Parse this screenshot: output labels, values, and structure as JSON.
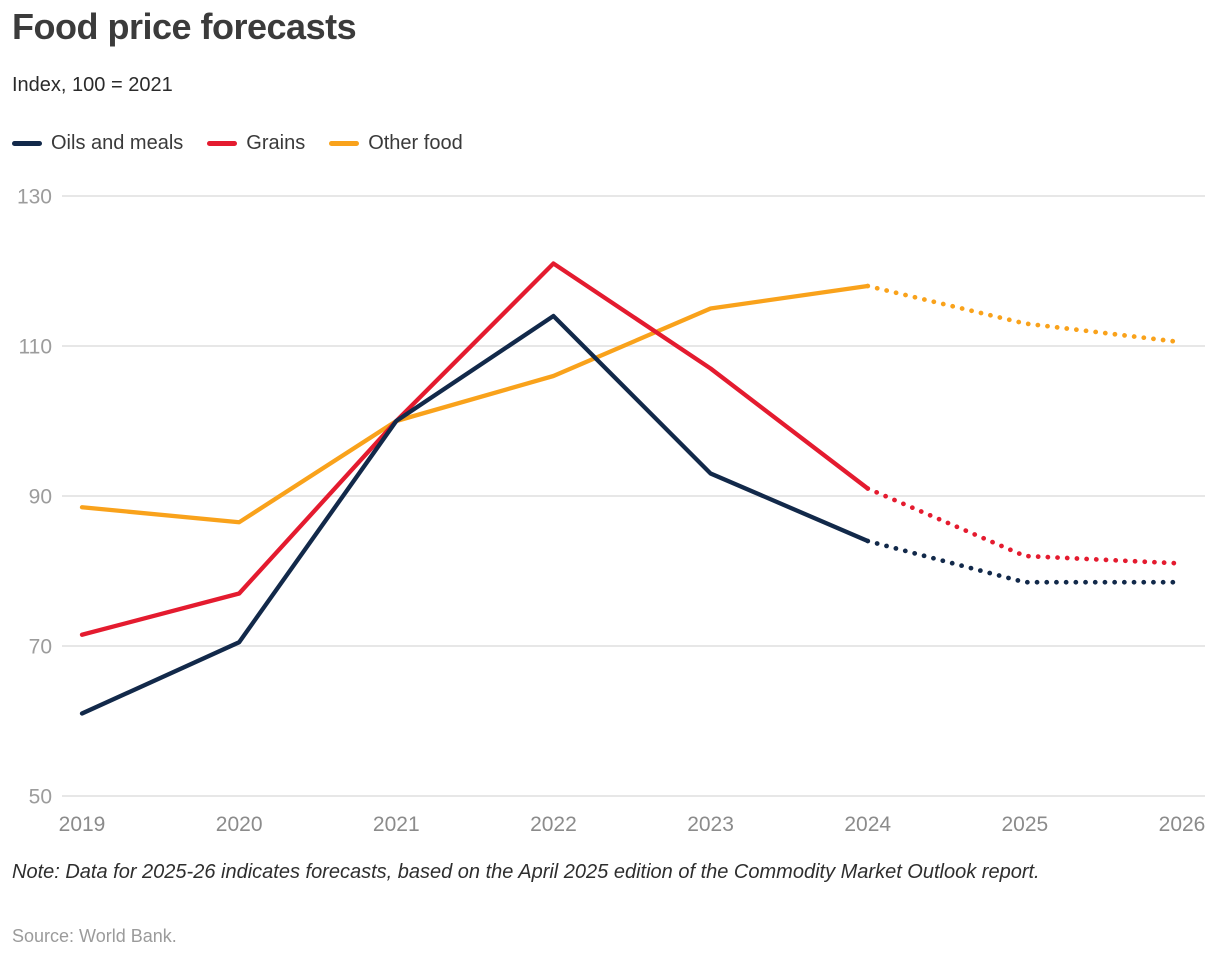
{
  "header": {
    "title": "Food price forecasts",
    "subtitle": "Index, 100 = 2021"
  },
  "legend": [
    {
      "label": "Oils and meals",
      "color": "#12294a"
    },
    {
      "label": "Grains",
      "color": "#e41b2f"
    },
    {
      "label": "Other food",
      "color": "#f9a21b"
    }
  ],
  "chart_data": {
    "type": "line",
    "title": "Food price forecasts",
    "ylabel": "Index, 100 = 2021",
    "x": [
      2019,
      2020,
      2021,
      2022,
      2023,
      2024,
      2025,
      2026
    ],
    "series": [
      {
        "name": "Oils and meals",
        "color": "#12294a",
        "forecast_from": 2024,
        "values": [
          61,
          70.5,
          100,
          114,
          93,
          84,
          78.5,
          78.5
        ]
      },
      {
        "name": "Grains",
        "color": "#e41b2f",
        "forecast_from": 2024,
        "values": [
          71.5,
          77,
          100,
          121,
          107,
          91,
          82,
          81
        ]
      },
      {
        "name": "Other food",
        "color": "#f9a21b",
        "forecast_from": 2024,
        "values": [
          88.5,
          86.5,
          100,
          106,
          115,
          118,
          113,
          110.5
        ]
      }
    ],
    "ylim": [
      50,
      130
    ],
    "yticks": [
      130,
      110,
      90,
      70,
      50
    ],
    "grid": "horizontal",
    "legend_position": "top",
    "forecast_style": "dotted (2025-26 forecast, dotted from 2024 point)"
  },
  "footer": {
    "note": "Note: Data for 2025-26 indicates forecasts, based on the April 2025 edition of the Commodity Market Outlook report.",
    "source": "Source: World Bank."
  },
  "colors": {
    "grid": "#e7e7e7",
    "y_tick_text": "#9c9c9c",
    "x_tick_text": "#8b8b8b"
  }
}
